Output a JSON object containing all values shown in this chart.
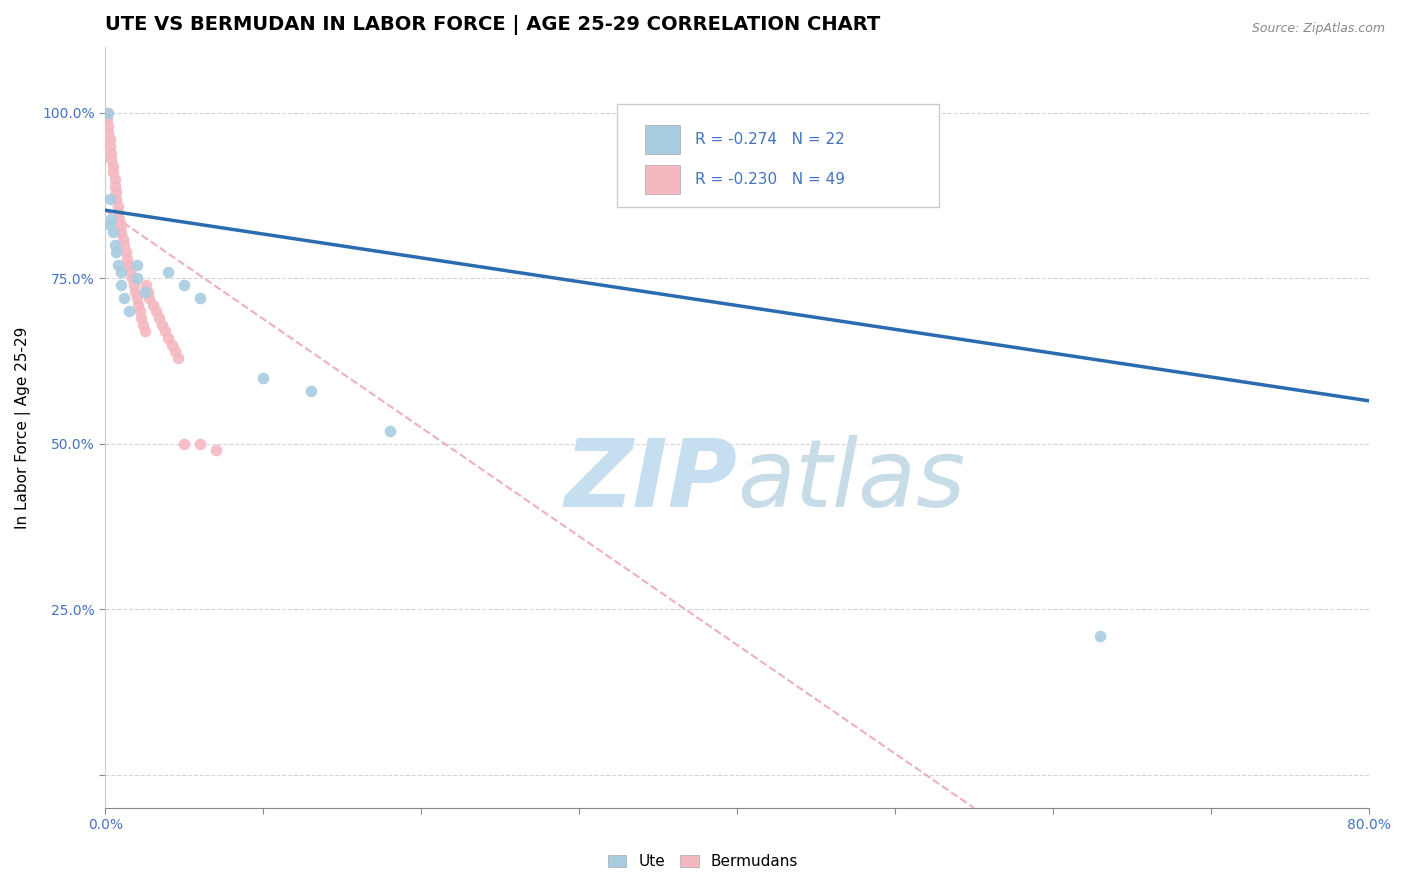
{
  "title": "UTE VS BERMUDAN IN LABOR FORCE | AGE 25-29 CORRELATION CHART",
  "source": "Source: ZipAtlas.com",
  "ylabel": "In Labor Force | Age 25-29",
  "xlim": [
    0.0,
    0.8
  ],
  "ylim": [
    -0.05,
    1.1
  ],
  "xticks": [
    0.0,
    0.1,
    0.2,
    0.3,
    0.4,
    0.5,
    0.6,
    0.7,
    0.8
  ],
  "xticklabels": [
    "0.0%",
    "",
    "",
    "",
    "",
    "",
    "",
    "",
    "80.0%"
  ],
  "yticks": [
    0.0,
    0.25,
    0.5,
    0.75,
    1.0
  ],
  "yticklabels": [
    "",
    "25.0%",
    "50.0%",
    "75.0%",
    "100.0%"
  ],
  "ute_x": [
    0.002,
    0.003,
    0.003,
    0.004,
    0.005,
    0.006,
    0.007,
    0.008,
    0.01,
    0.01,
    0.012,
    0.015,
    0.02,
    0.02,
    0.025,
    0.04,
    0.05,
    0.06,
    0.1,
    0.13,
    0.18,
    0.63
  ],
  "ute_y": [
    1.0,
    0.87,
    0.83,
    0.84,
    0.82,
    0.8,
    0.79,
    0.77,
    0.76,
    0.74,
    0.72,
    0.7,
    0.77,
    0.75,
    0.73,
    0.76,
    0.74,
    0.72,
    0.6,
    0.58,
    0.52,
    0.21
  ],
  "bermudans_x": [
    0.001,
    0.001,
    0.002,
    0.002,
    0.003,
    0.003,
    0.004,
    0.004,
    0.005,
    0.005,
    0.006,
    0.006,
    0.007,
    0.007,
    0.008,
    0.008,
    0.009,
    0.01,
    0.01,
    0.011,
    0.012,
    0.013,
    0.014,
    0.015,
    0.016,
    0.017,
    0.018,
    0.019,
    0.02,
    0.021,
    0.022,
    0.023,
    0.024,
    0.025,
    0.026,
    0.027,
    0.028,
    0.03,
    0.032,
    0.034,
    0.036,
    0.038,
    0.04,
    0.042,
    0.044,
    0.046,
    0.05,
    0.06,
    0.07
  ],
  "bermudans_y": [
    1.0,
    0.99,
    0.98,
    0.97,
    0.96,
    0.95,
    0.94,
    0.93,
    0.92,
    0.91,
    0.9,
    0.89,
    0.88,
    0.87,
    0.86,
    0.85,
    0.84,
    0.83,
    0.82,
    0.81,
    0.8,
    0.79,
    0.78,
    0.77,
    0.76,
    0.75,
    0.74,
    0.73,
    0.72,
    0.71,
    0.7,
    0.69,
    0.68,
    0.67,
    0.74,
    0.73,
    0.72,
    0.71,
    0.7,
    0.69,
    0.68,
    0.67,
    0.66,
    0.65,
    0.64,
    0.63,
    0.5,
    0.5,
    0.49
  ],
  "ute_color": "#a8cce0",
  "bermudans_color": "#f4b8c1",
  "ute_line_color": "#2b6cb0",
  "bermudans_line_color": "#e88fa0",
  "watermark_color": "#daeef8",
  "legend_r_ute": "R = -0.274",
  "legend_n_ute": "N = 22",
  "legend_r_bermudans": "R = -0.230",
  "legend_n_bermudans": "N = 49",
  "title_fontsize": 14,
  "axis_label_fontsize": 11,
  "tick_fontsize": 10,
  "tick_color": "#4472c4",
  "background_color": "#ffffff",
  "ute_line_x0": 0.0,
  "ute_line_y0": 0.853,
  "ute_line_x1": 0.8,
  "ute_line_y1": 0.565,
  "berm_line_x0": 0.0,
  "berm_line_y0": 0.853,
  "berm_line_x1": 0.55,
  "berm_line_y1": -0.05
}
